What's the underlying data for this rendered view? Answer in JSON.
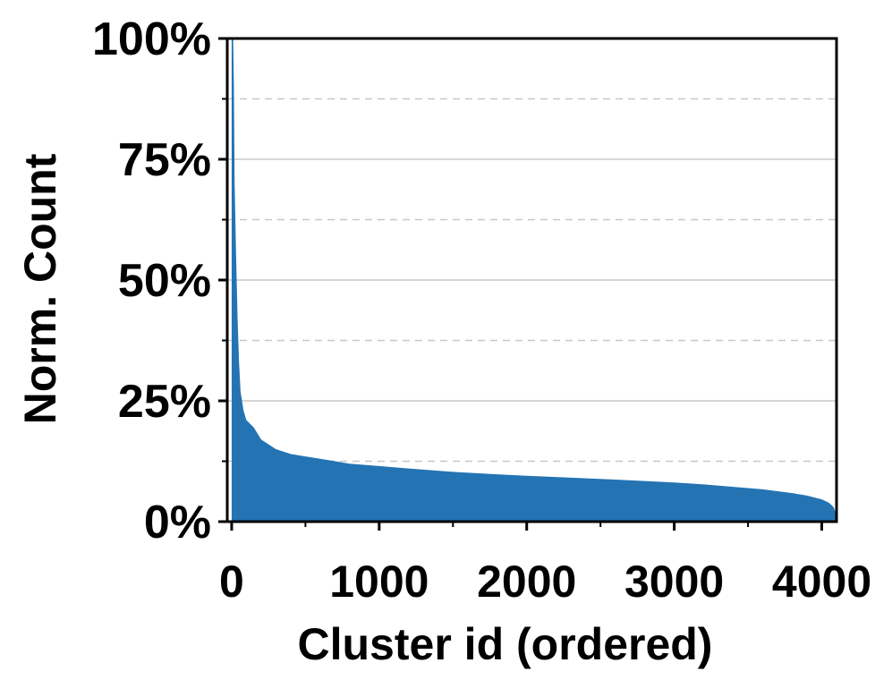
{
  "chart_data": {
    "type": "area",
    "xlabel": "Cluster id (ordered)",
    "ylabel": "Norm. Count",
    "xlim": [
      -30,
      4100
    ],
    "ylim": [
      0,
      100
    ],
    "x_ticks": [
      0,
      1000,
      2000,
      3000,
      4000
    ],
    "x_tick_labels": [
      "0",
      "1000",
      "2000",
      "3000",
      "4000"
    ],
    "x_minor_ticks": [
      500,
      1500,
      2500,
      3500
    ],
    "y_ticks": [
      0,
      25,
      50,
      75,
      100
    ],
    "y_tick_labels": [
      "0%",
      "25%",
      "50%",
      "75%",
      "100%"
    ],
    "y_minor_ticks": [
      12.5,
      37.5,
      62.5,
      87.5
    ],
    "grid": {
      "major": "solid",
      "minor": "dashed",
      "axis": "y"
    },
    "series": [
      {
        "color": "#2474b4",
        "x": [
          0,
          5,
          10,
          15,
          20,
          30,
          40,
          50,
          60,
          80,
          100,
          150,
          200,
          300,
          400,
          500,
          600,
          800,
          1000,
          1200,
          1500,
          1800,
          2000,
          2300,
          2600,
          2800,
          3000,
          3200,
          3400,
          3600,
          3800,
          3900,
          4000,
          4050,
          4080,
          4095
        ],
        "values": [
          100,
          100,
          100,
          90,
          70,
          55,
          42,
          33,
          27,
          23,
          21,
          19.5,
          17,
          15,
          14,
          13.5,
          13,
          12,
          11.5,
          11,
          10.3,
          9.8,
          9.5,
          9.1,
          8.7,
          8.4,
          8.1,
          7.7,
          7.2,
          6.7,
          5.9,
          5.4,
          4.6,
          3.9,
          3.0,
          1.8
        ]
      }
    ]
  }
}
